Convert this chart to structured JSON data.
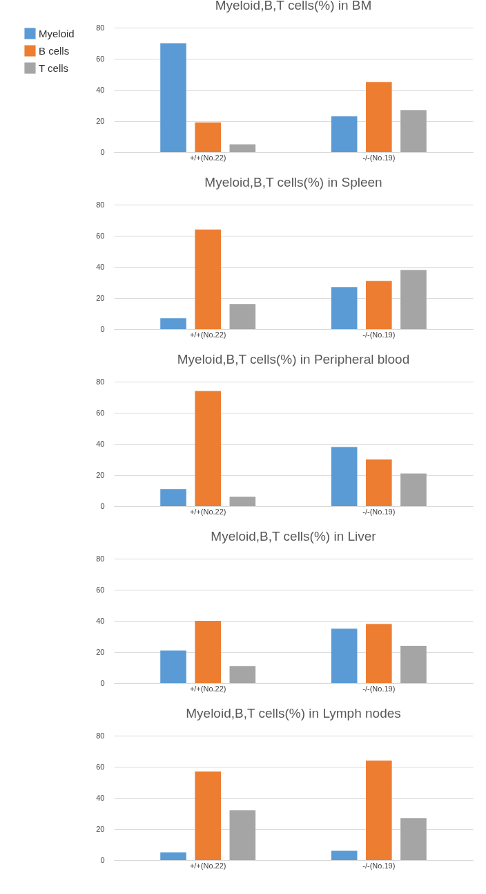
{
  "chart_data": [
    {
      "type": "bar",
      "title": "Myeloid,B,T cells(%) in BM",
      "categories": [
        "+/+(No.22)",
        "-/-(No.19)"
      ],
      "ylim": [
        0,
        80
      ],
      "yticks": [
        0,
        20,
        40,
        60,
        80
      ],
      "grid": "y",
      "legend": "top left",
      "series": [
        {
          "name": "Myeloid",
          "color": "#5b9bd5",
          "values": [
            70,
            23
          ]
        },
        {
          "name": "B cells",
          "color": "#ed7d31",
          "values": [
            19,
            45
          ]
        },
        {
          "name": "T cells",
          "color": "#a5a5a5",
          "values": [
            5,
            27
          ]
        }
      ]
    },
    {
      "type": "bar",
      "title": "Myeloid,B,T cells(%) in Spleen",
      "categories": [
        "+/+(No.22)",
        "-/-(No.19)"
      ],
      "ylim": [
        0,
        80
      ],
      "yticks": [
        0,
        20,
        40,
        60,
        80
      ],
      "grid": "y",
      "series": [
        {
          "color": "#5b9bd5",
          "values": [
            7,
            27
          ]
        },
        {
          "color": "#ed7d31",
          "values": [
            64,
            31
          ]
        },
        {
          "color": "#a5a5a5",
          "values": [
            16,
            38
          ]
        }
      ]
    },
    {
      "type": "bar",
      "title": "Myeloid,B,T cells(%) in Peripheral blood",
      "categories": [
        "+/+(No.22)",
        "-/-(No.19)"
      ],
      "ylim": [
        0,
        80
      ],
      "yticks": [
        0,
        20,
        40,
        60,
        80
      ],
      "grid": "y",
      "series": [
        {
          "color": "#5b9bd5",
          "values": [
            11,
            38
          ]
        },
        {
          "color": "#ed7d31",
          "values": [
            74,
            30
          ]
        },
        {
          "color": "#a5a5a5",
          "values": [
            6,
            21
          ]
        }
      ]
    },
    {
      "type": "bar",
      "title": "Myeloid,B,T cells(%) in Liver",
      "categories": [
        "+/+(No.22)",
        "-/-(No.19)"
      ],
      "ylim": [
        0,
        80
      ],
      "yticks": [
        0,
        20,
        40,
        60,
        80
      ],
      "grid": "y",
      "series": [
        {
          "color": "#5b9bd5",
          "values": [
            21,
            35
          ]
        },
        {
          "color": "#ed7d31",
          "values": [
            40,
            38
          ]
        },
        {
          "color": "#a5a5a5",
          "values": [
            11,
            24
          ]
        }
      ]
    },
    {
      "type": "bar",
      "title": "Myeloid,B,T cells(%) in Lymph nodes",
      "categories": [
        "+/+(No.22)",
        "-/-(No.19)"
      ],
      "ylim": [
        0,
        80
      ],
      "yticks": [
        0,
        20,
        40,
        60,
        80
      ],
      "grid": "y",
      "series": [
        {
          "color": "#5b9bd5",
          "values": [
            5,
            6
          ]
        },
        {
          "color": "#ed7d31",
          "values": [
            57,
            64
          ]
        },
        {
          "color": "#a5a5a5",
          "values": [
            32,
            27
          ]
        }
      ]
    }
  ]
}
